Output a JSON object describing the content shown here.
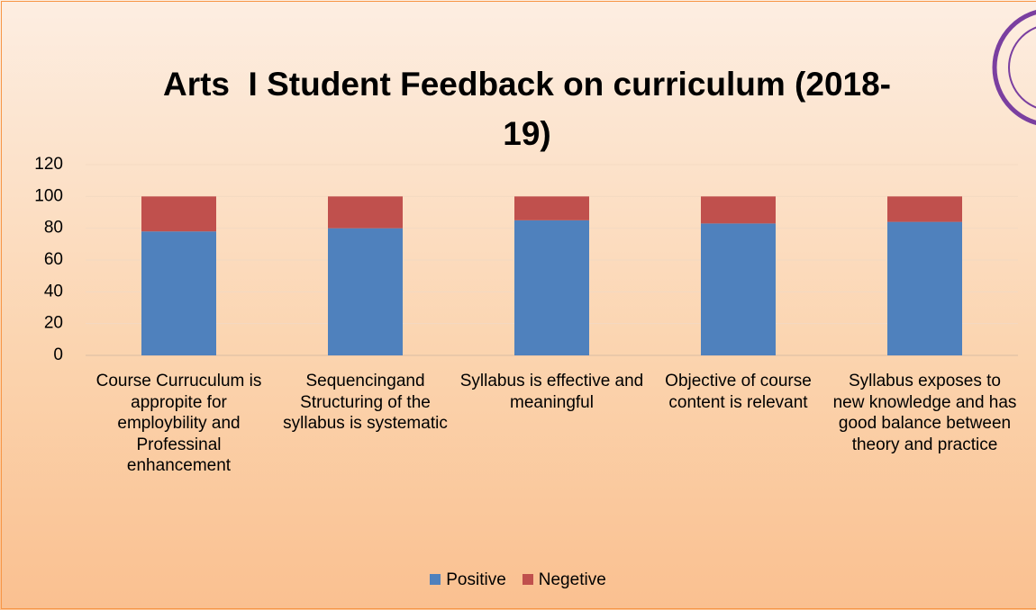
{
  "chart_data": {
    "type": "stacked_bar",
    "title": "Arts  I Student Feedback on curriculum (2018-19)",
    "categories": [
      "Course Curruculum is appropite for employbility and Professinal enhancement",
      "Sequencingand Structuring of the syllabus is systematic",
      "Syllabus is effective and meaningful",
      "Objective of course content is relevant",
      "Syllabus exposes to new knowledge and has good balance between theory and practice"
    ],
    "series": [
      {
        "name": "Positive",
        "color": "#4f81bd",
        "values": [
          78,
          80,
          85,
          83,
          84
        ]
      },
      {
        "name": "Negetive",
        "color": "#c0504d",
        "values": [
          22,
          20,
          15,
          17,
          16
        ]
      }
    ],
    "ylim": [
      0,
      120
    ],
    "yticks": [
      0,
      20,
      40,
      60,
      80,
      100,
      120
    ],
    "grid": true,
    "legend": "bottom"
  }
}
